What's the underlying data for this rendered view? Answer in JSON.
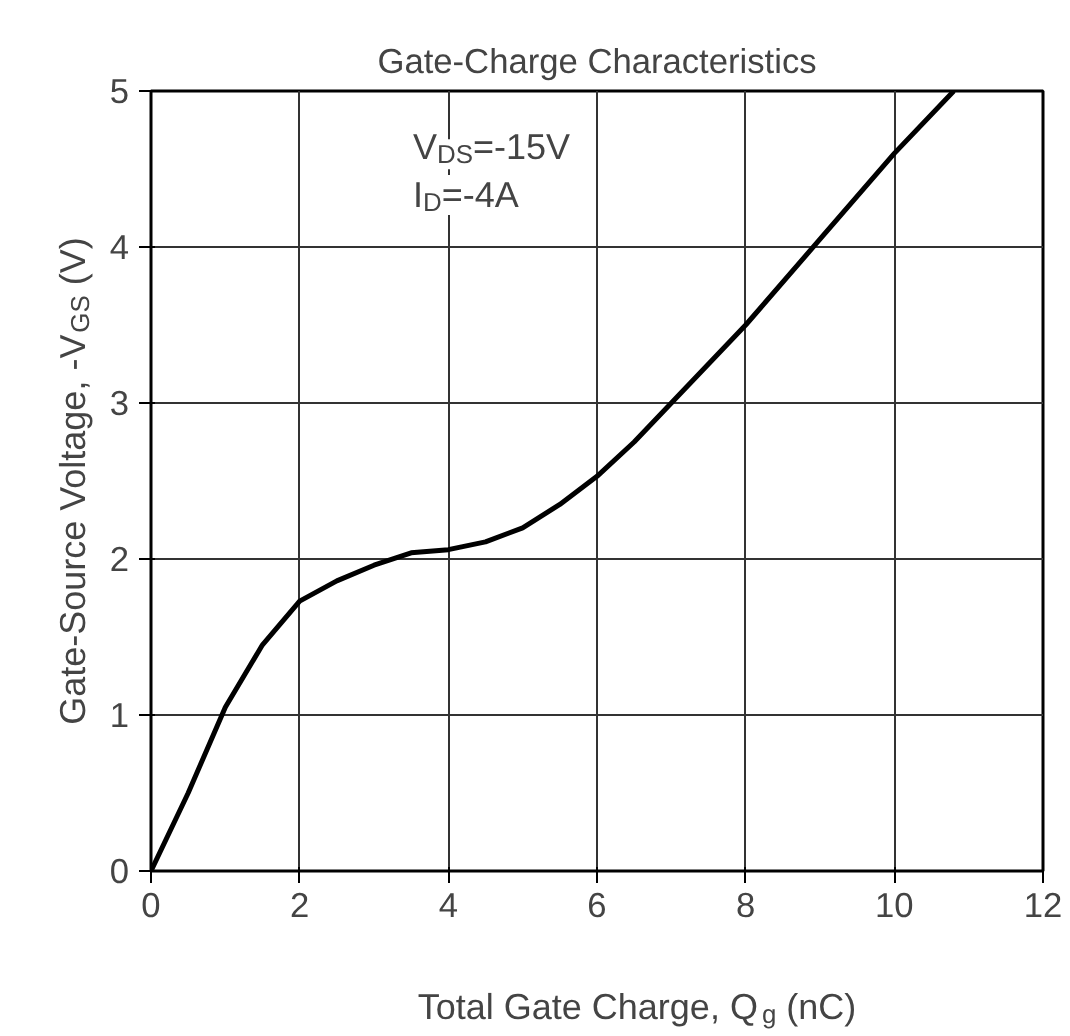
{
  "chart_data": {
    "type": "line",
    "title": "Gate-Charge Characteristics",
    "xlabel": "Total Gate Charge, Q$_{g}$ (nC)",
    "ylabel": "Gate-Source Voltage, -V$_{GS}$ (V)",
    "annotations": [
      "V$_{DS}$=-15V",
      "I$_{D}$=-4A"
    ],
    "x": [
      0,
      0.5,
      1,
      1.5,
      2,
      2.5,
      3,
      3.5,
      4,
      4.5,
      5,
      5.5,
      6,
      6.5,
      7,
      8,
      9,
      10,
      10.8
    ],
    "series": [
      {
        "color": "#000000",
        "values": [
          0,
          0.5,
          1.05,
          1.45,
          1.73,
          1.86,
          1.96,
          2.04,
          2.06,
          2.11,
          2.2,
          2.35,
          2.53,
          2.75,
          3.0,
          3.5,
          4.05,
          4.6,
          5.0
        ]
      }
    ],
    "xlim": [
      0,
      12
    ],
    "ylim": [
      0,
      5
    ],
    "xticks": [
      0,
      2,
      4,
      6,
      8,
      10,
      12
    ],
    "yticks": [
      0,
      1,
      2,
      3,
      4,
      5
    ],
    "grid": true,
    "marker": "none",
    "line_style": "solid"
  }
}
